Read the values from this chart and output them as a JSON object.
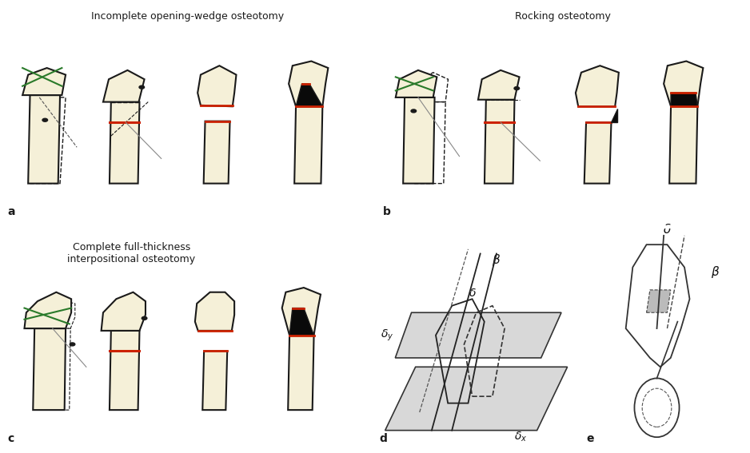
{
  "bg_color": "#5cb897",
  "bone_fill": "#f5f0d8",
  "bone_outline": "#1a1a1a",
  "red_line": "#cc2200",
  "green_line": "#2a7a2a",
  "black_fill": "#0a0a0a",
  "panel_a_title": "Incomplete opening-wedge osteotomy",
  "panel_b_title": "Rocking osteotomy",
  "panel_c_title": "Complete full-thickness\ninterpositional osteotomy",
  "label_a": "a",
  "label_b": "b",
  "label_c": "c",
  "label_d": "d",
  "label_e": "e",
  "gray_bg": "#c8c8c8",
  "title_fontsize": 9,
  "label_fontsize": 10
}
